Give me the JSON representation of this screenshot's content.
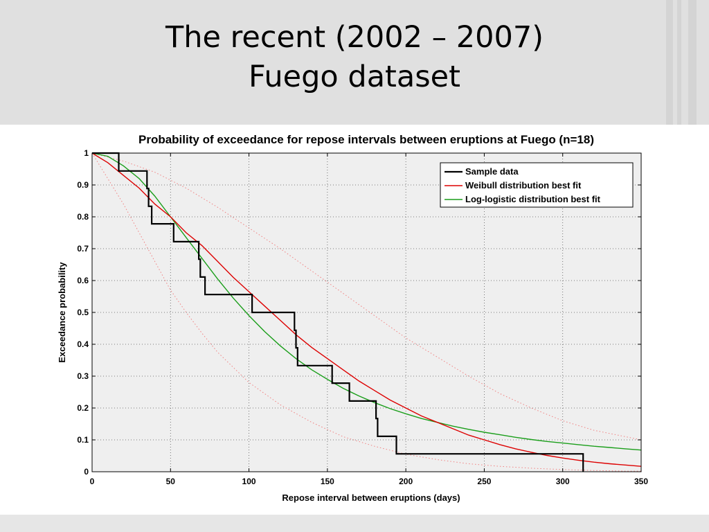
{
  "slide": {
    "title_line1": "The recent (2002 – 2007)",
    "title_line2": "Fuego dataset"
  },
  "chart_data": {
    "type": "line",
    "title": "Probability of exceedance for repose intervals between eruptions at Fuego (n=18)",
    "xlabel": "Repose interval between eruptions (days)",
    "ylabel": "Exceedance probability",
    "xlim": [
      0,
      350
    ],
    "ylim": [
      0,
      1
    ],
    "xticks": [
      0,
      50,
      100,
      150,
      200,
      250,
      300,
      350
    ],
    "yticks": [
      0,
      0.1,
      0.2,
      0.3,
      0.4,
      0.5,
      0.6,
      0.7,
      0.8,
      0.9,
      1
    ],
    "xtick_labels": [
      "0",
      "50",
      "100",
      "150",
      "200",
      "250",
      "300",
      "350"
    ],
    "ytick_labels": [
      "0",
      "0.1",
      "0.2",
      "0.3",
      "0.4",
      "0.5",
      "0.6",
      "0.7",
      "0.8",
      "0.9",
      "1"
    ],
    "grid": true,
    "legend_position": "top-right",
    "series": [
      {
        "name": "Sample data",
        "style": "step",
        "color": "#000000",
        "x": [
          0,
          17,
          17,
          35,
          35,
          36,
          36,
          38,
          38,
          52,
          52,
          68,
          68,
          69,
          69,
          72,
          72,
          102,
          102,
          129,
          129,
          130,
          130,
          131,
          131,
          153,
          153,
          164,
          164,
          181,
          181,
          182,
          182,
          194,
          194,
          263,
          263,
          313,
          313
        ],
        "y": [
          1,
          1,
          0.944,
          0.944,
          0.889,
          0.889,
          0.833,
          0.833,
          0.778,
          0.778,
          0.722,
          0.722,
          0.667,
          0.667,
          0.611,
          0.611,
          0.556,
          0.556,
          0.5,
          0.5,
          0.444,
          0.444,
          0.389,
          0.389,
          0.333,
          0.333,
          0.278,
          0.278,
          0.222,
          0.222,
          0.167,
          0.167,
          0.111,
          0.111,
          0.056,
          0.056,
          0.056,
          0.056,
          0
        ]
      },
      {
        "name": "Weibull distribution best fit",
        "style": "line",
        "color": "#dd0000",
        "x": [
          0,
          10,
          20,
          30,
          40,
          50,
          60,
          70,
          80,
          90,
          100,
          110,
          120,
          130,
          140,
          150,
          160,
          170,
          180,
          190,
          200,
          210,
          220,
          230,
          240,
          250,
          260,
          270,
          280,
          290,
          300,
          310,
          320,
          330,
          340,
          350
        ],
        "y": [
          1,
          0.97,
          0.93,
          0.89,
          0.84,
          0.8,
          0.75,
          0.71,
          0.66,
          0.61,
          0.565,
          0.52,
          0.475,
          0.43,
          0.39,
          0.355,
          0.32,
          0.285,
          0.255,
          0.225,
          0.2,
          0.175,
          0.155,
          0.135,
          0.115,
          0.1,
          0.085,
          0.072,
          0.061,
          0.051,
          0.043,
          0.036,
          0.03,
          0.025,
          0.021,
          0.017
        ]
      },
      {
        "name": "Log-logistic distribution best fit",
        "style": "line",
        "color": "#1a9e1a",
        "x": [
          0,
          10,
          20,
          30,
          40,
          50,
          60,
          70,
          80,
          90,
          100,
          110,
          120,
          130,
          140,
          150,
          160,
          170,
          180,
          190,
          200,
          210,
          220,
          230,
          240,
          250,
          260,
          270,
          280,
          290,
          300,
          310,
          320,
          330,
          340,
          350
        ],
        "y": [
          1,
          0.99,
          0.96,
          0.92,
          0.865,
          0.8,
          0.735,
          0.67,
          0.605,
          0.545,
          0.49,
          0.44,
          0.395,
          0.355,
          0.32,
          0.29,
          0.262,
          0.238,
          0.217,
          0.198,
          0.182,
          0.167,
          0.155,
          0.143,
          0.133,
          0.124,
          0.116,
          0.108,
          0.101,
          0.095,
          0.09,
          0.085,
          0.08,
          0.076,
          0.072,
          0.068
        ]
      },
      {
        "name": "",
        "style": "dotted",
        "color": "#f08080",
        "x": [
          0,
          20,
          40,
          60,
          80,
          100,
          120,
          140,
          160,
          180,
          200,
          220,
          240,
          260,
          280,
          300,
          320,
          350
        ],
        "y": [
          1,
          0.975,
          0.94,
          0.89,
          0.83,
          0.765,
          0.7,
          0.63,
          0.56,
          0.49,
          0.42,
          0.36,
          0.3,
          0.245,
          0.2,
          0.16,
          0.13,
          0.1
        ]
      },
      {
        "name": "",
        "style": "dotted",
        "color": "#f08080",
        "x": [
          0,
          10,
          20,
          30,
          40,
          50,
          60,
          70,
          80,
          100,
          120,
          140,
          160,
          180,
          200,
          220,
          240,
          260,
          280,
          300,
          320,
          340,
          350
        ],
        "y": [
          1,
          0.92,
          0.84,
          0.75,
          0.66,
          0.57,
          0.5,
          0.435,
          0.375,
          0.28,
          0.21,
          0.155,
          0.11,
          0.08,
          0.055,
          0.038,
          0.025,
          0.017,
          0.011,
          0.007,
          0.004,
          0.002,
          0.002
        ]
      }
    ]
  }
}
